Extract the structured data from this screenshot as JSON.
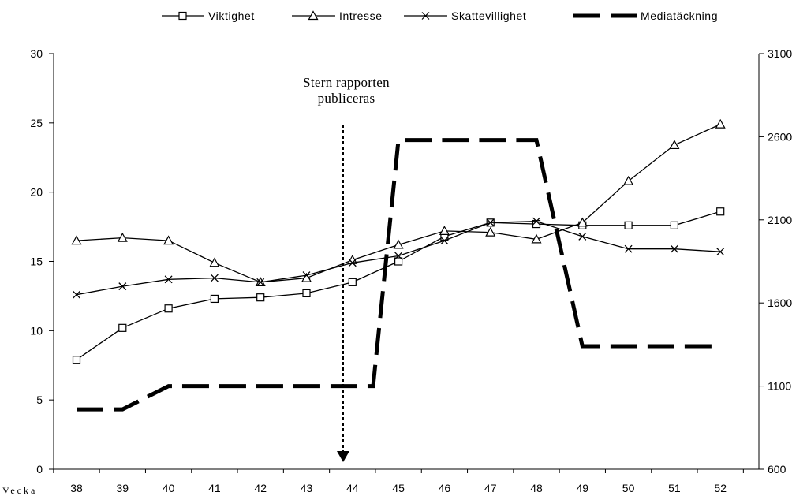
{
  "chart_data": {
    "type": "line",
    "xlabel": "Vecka",
    "categories": [
      "38",
      "39",
      "40",
      "41",
      "42",
      "43",
      "44",
      "45",
      "46",
      "47",
      "48",
      "49",
      "50",
      "51",
      "52"
    ],
    "y_left": {
      "ylim": [
        0,
        30
      ],
      "ticks": [
        "0",
        "5",
        "10",
        "15",
        "20",
        "25",
        "30"
      ]
    },
    "y_right": {
      "ylim": [
        600,
        3100
      ],
      "ticks": [
        "600",
        "1100",
        "1600",
        "2100",
        "2600",
        "3100"
      ]
    },
    "grid": false,
    "legend_position": "top",
    "series": [
      {
        "name": "Viktighet",
        "axis": "left",
        "marker": "square",
        "values": [
          7.9,
          10.2,
          11.6,
          12.3,
          12.4,
          12.7,
          13.5,
          15.0,
          16.8,
          17.8,
          17.7,
          17.6,
          17.6,
          17.6,
          18.6
        ]
      },
      {
        "name": "Intresse",
        "axis": "left",
        "marker": "triangle",
        "values": [
          16.5,
          16.7,
          16.5,
          14.9,
          13.5,
          13.8,
          15.1,
          16.2,
          17.2,
          17.1,
          16.6,
          17.8,
          20.8,
          23.4,
          24.9
        ]
      },
      {
        "name": "Skattevillighet",
        "axis": "left",
        "marker": "x",
        "values": [
          12.6,
          13.2,
          13.7,
          13.8,
          13.5,
          14.0,
          14.9,
          15.4,
          16.5,
          17.8,
          17.9,
          16.8,
          15.9,
          15.9,
          15.7
        ]
      },
      {
        "name": "Mediatäckning",
        "axis": "right",
        "marker": "none",
        "style": "dashed-thick",
        "points": [
          [
            38,
            960
          ],
          [
            39,
            960
          ],
          [
            40,
            1100
          ],
          [
            41,
            1100
          ],
          [
            42,
            1100
          ],
          [
            43,
            1100
          ],
          [
            44,
            1100
          ],
          [
            44.3,
            1100
          ],
          [
            44.45,
            1100
          ],
          [
            45,
            2580
          ],
          [
            46,
            2580
          ],
          [
            47,
            2580
          ],
          [
            48,
            2580
          ],
          [
            49,
            1340
          ],
          [
            50,
            1340
          ],
          [
            51,
            1340
          ],
          [
            52,
            1340
          ]
        ]
      }
    ],
    "annotation": {
      "lines": [
        "Stern rapporten",
        "publiceras"
      ],
      "at_week": 43.9,
      "arrow": "dotted-down"
    }
  }
}
